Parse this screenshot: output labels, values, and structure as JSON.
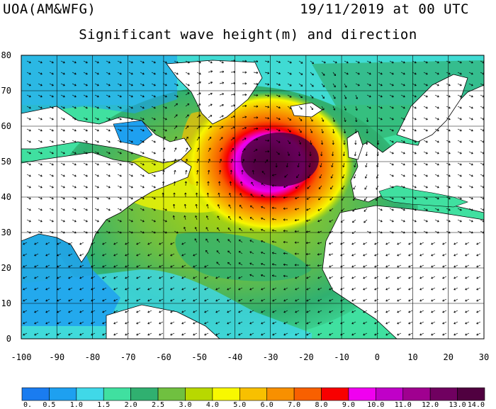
{
  "header": {
    "agency": "UOA(AM&WFG)",
    "datetime": "19/11/2019 at 00 UTC",
    "title": "Significant wave height(m) and direction"
  },
  "map": {
    "lon_range": [
      -100,
      30
    ],
    "lat_range": [
      0,
      80
    ],
    "x_ticks": [
      "-100",
      "-90",
      "-80",
      "-70",
      "-60",
      "-50",
      "-40",
      "-30",
      "-20",
      "-10",
      "0",
      "10",
      "20",
      "30"
    ],
    "y_ticks": [
      "0",
      "10",
      "20",
      "30",
      "40",
      "50",
      "60",
      "70",
      "80"
    ],
    "storm_center_lon": -30,
    "storm_center_lat": 49,
    "max_wave_height_m": 14,
    "land_color": "#ffffff",
    "grid": true
  },
  "colorbar": {
    "labels": [
      "0.",
      "0.5",
      "1.0",
      "1.5",
      "2.0",
      "2.5",
      "3.0",
      "4.0",
      "5.0",
      "6.0",
      "7.0",
      "8.0",
      "9.0",
      "10.0",
      "11.0",
      "12.0",
      "13.0",
      "14.0"
    ],
    "colors": [
      "#1a7cf0",
      "#1ea0f0",
      "#40d8e8",
      "#40e0a0",
      "#30b070",
      "#70c040",
      "#b8d800",
      "#f8f800",
      "#f8c000",
      "#f89000",
      "#f86000",
      "#f80000",
      "#f000f0",
      "#c000c8",
      "#a00090",
      "#700060",
      "#500040"
    ]
  }
}
